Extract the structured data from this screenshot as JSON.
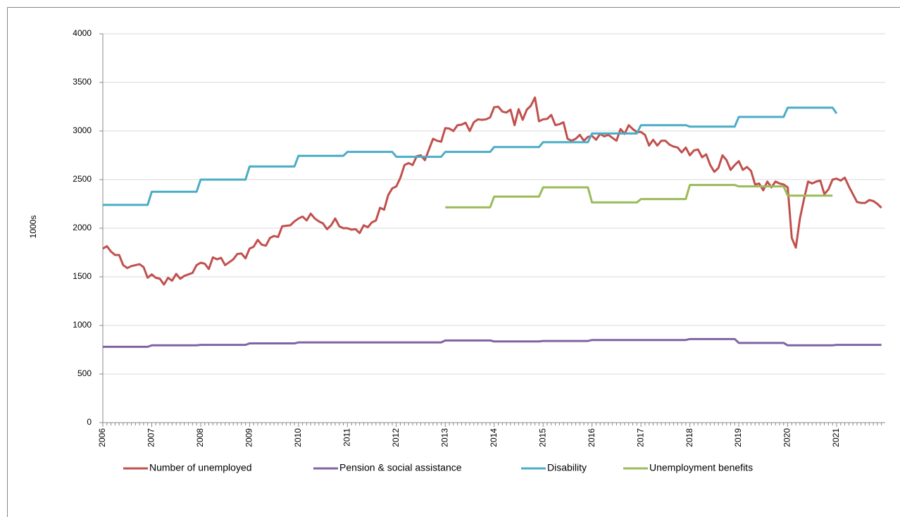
{
  "chart_data": {
    "type": "line",
    "y_label": "1000s",
    "categories": [
      "2006",
      null,
      null,
      null,
      null,
      null,
      null,
      null,
      null,
      null,
      null,
      null,
      "2007",
      null,
      null,
      null,
      null,
      null,
      null,
      null,
      null,
      null,
      null,
      null,
      "2008",
      null,
      null,
      null,
      null,
      null,
      null,
      null,
      null,
      null,
      null,
      null,
      "2009",
      null,
      null,
      null,
      null,
      null,
      null,
      null,
      null,
      null,
      null,
      null,
      "2010",
      null,
      null,
      null,
      null,
      null,
      null,
      null,
      null,
      null,
      null,
      null,
      "2011",
      null,
      null,
      null,
      null,
      null,
      null,
      null,
      null,
      null,
      null,
      null,
      "2012",
      null,
      null,
      null,
      null,
      null,
      null,
      null,
      null,
      null,
      null,
      null,
      "2013",
      null,
      null,
      null,
      null,
      null,
      null,
      null,
      null,
      null,
      null,
      null,
      "2014",
      null,
      null,
      null,
      null,
      null,
      null,
      null,
      null,
      null,
      null,
      null,
      "2015",
      null,
      null,
      null,
      null,
      null,
      null,
      null,
      null,
      null,
      null,
      null,
      "2016",
      null,
      null,
      null,
      null,
      null,
      null,
      null,
      null,
      null,
      null,
      null,
      "2017",
      null,
      null,
      null,
      null,
      null,
      null,
      null,
      null,
      null,
      null,
      null,
      "2018",
      null,
      null,
      null,
      null,
      null,
      null,
      null,
      null,
      null,
      null,
      null,
      "2019",
      null,
      null,
      null,
      null,
      null,
      null,
      null,
      null,
      null,
      null,
      null,
      "2020",
      null,
      null,
      null,
      null,
      null,
      null,
      null,
      null,
      null,
      null,
      null,
      "2021",
      null,
      null,
      null,
      null,
      null,
      null,
      null,
      null,
      null,
      null,
      null
    ],
    "series": [
      {
        "name": "Number of unemployed",
        "color": "#c0504d",
        "values": [
          1790,
          1815,
          1760,
          1725,
          1725,
          1620,
          1590,
          1610,
          1620,
          1630,
          1600,
          1490,
          1525,
          1490,
          1480,
          1420,
          1490,
          1460,
          1530,
          1480,
          1510,
          1525,
          1540,
          1620,
          1645,
          1635,
          1580,
          1700,
          1680,
          1695,
          1620,
          1650,
          1680,
          1735,
          1740,
          1690,
          1790,
          1810,
          1880,
          1830,
          1820,
          1900,
          1920,
          1910,
          2020,
          2025,
          2030,
          2070,
          2100,
          2120,
          2080,
          2150,
          2100,
          2070,
          2050,
          1990,
          2030,
          2100,
          2020,
          2000,
          2000,
          1985,
          1990,
          1950,
          2030,
          2010,
          2060,
          2080,
          2210,
          2190,
          2340,
          2410,
          2430,
          2520,
          2650,
          2670,
          2650,
          2740,
          2750,
          2700,
          2810,
          2920,
          2900,
          2890,
          3030,
          3025,
          3000,
          3060,
          3065,
          3085,
          3000,
          3090,
          3120,
          3115,
          3120,
          3140,
          3245,
          3250,
          3200,
          3190,
          3220,
          3060,
          3225,
          3115,
          3220,
          3260,
          3345,
          3100,
          3120,
          3125,
          3165,
          3060,
          3070,
          3090,
          2920,
          2900,
          2920,
          2960,
          2900,
          2940,
          2950,
          2910,
          2970,
          2945,
          2960,
          2930,
          2900,
          3020,
          2970,
          3060,
          3020,
          2990,
          2990,
          2960,
          2850,
          2910,
          2850,
          2900,
          2900,
          2860,
          2840,
          2830,
          2780,
          2830,
          2750,
          2800,
          2810,
          2730,
          2760,
          2650,
          2580,
          2620,
          2750,
          2700,
          2600,
          2650,
          2690,
          2600,
          2630,
          2590,
          2450,
          2460,
          2390,
          2480,
          2420,
          2480,
          2460,
          2450,
          2420,
          1900,
          1800,
          2100,
          2300,
          2480,
          2460,
          2480,
          2490,
          2350,
          2400,
          2500,
          2510,
          2490,
          2520,
          2430,
          2350,
          2270,
          2260,
          2260,
          2290,
          2280,
          2250,
          2210
        ]
      },
      {
        "name": "Pension & social assistance",
        "color": "#8064a2",
        "values": [
          780,
          780,
          780,
          780,
          780,
          780,
          780,
          780,
          780,
          780,
          780,
          780,
          795,
          795,
          795,
          795,
          795,
          795,
          795,
          795,
          795,
          795,
          795,
          795,
          800,
          800,
          800,
          800,
          800,
          800,
          800,
          800,
          800,
          800,
          800,
          800,
          815,
          815,
          815,
          815,
          815,
          815,
          815,
          815,
          815,
          815,
          815,
          815,
          825,
          825,
          825,
          825,
          825,
          825,
          825,
          825,
          825,
          825,
          825,
          825,
          825,
          825,
          825,
          825,
          825,
          825,
          825,
          825,
          825,
          825,
          825,
          825,
          825,
          825,
          825,
          825,
          825,
          825,
          825,
          825,
          825,
          825,
          825,
          825,
          845,
          845,
          845,
          845,
          845,
          845,
          845,
          845,
          845,
          845,
          845,
          845,
          835,
          835,
          835,
          835,
          835,
          835,
          835,
          835,
          835,
          835,
          835,
          835,
          840,
          840,
          840,
          840,
          840,
          840,
          840,
          840,
          840,
          840,
          840,
          840,
          850,
          850,
          850,
          850,
          850,
          850,
          850,
          850,
          850,
          850,
          850,
          850,
          850,
          850,
          850,
          850,
          850,
          850,
          850,
          850,
          850,
          850,
          850,
          850,
          860,
          860,
          860,
          860,
          860,
          860,
          860,
          860,
          860,
          860,
          860,
          860,
          820,
          820,
          820,
          820,
          820,
          820,
          820,
          820,
          820,
          820,
          820,
          820,
          795,
          795,
          795,
          795,
          795,
          795,
          795,
          795,
          795,
          795,
          795,
          795,
          800,
          800,
          800,
          800,
          800,
          800,
          800,
          800,
          800,
          800,
          800,
          800
        ]
      },
      {
        "name": "Disability",
        "color": "#4bacc6",
        "values": [
          2240,
          2240,
          2240,
          2240,
          2240,
          2240,
          2240,
          2240,
          2240,
          2240,
          2240,
          2240,
          2375,
          2375,
          2375,
          2375,
          2375,
          2375,
          2375,
          2375,
          2375,
          2375,
          2375,
          2375,
          2500,
          2500,
          2500,
          2500,
          2500,
          2500,
          2500,
          2500,
          2500,
          2500,
          2500,
          2500,
          2635,
          2635,
          2635,
          2635,
          2635,
          2635,
          2635,
          2635,
          2635,
          2635,
          2635,
          2635,
          2745,
          2745,
          2745,
          2745,
          2745,
          2745,
          2745,
          2745,
          2745,
          2745,
          2745,
          2745,
          2785,
          2785,
          2785,
          2785,
          2785,
          2785,
          2785,
          2785,
          2785,
          2785,
          2785,
          2785,
          2735,
          2735,
          2735,
          2735,
          2735,
          2735,
          2735,
          2735,
          2735,
          2735,
          2735,
          2735,
          2785,
          2785,
          2785,
          2785,
          2785,
          2785,
          2785,
          2785,
          2785,
          2785,
          2785,
          2785,
          2835,
          2835,
          2835,
          2835,
          2835,
          2835,
          2835,
          2835,
          2835,
          2835,
          2835,
          2835,
          2885,
          2885,
          2885,
          2885,
          2885,
          2885,
          2885,
          2885,
          2885,
          2885,
          2885,
          2885,
          2975,
          2975,
          2975,
          2975,
          2975,
          2975,
          2975,
          2975,
          2975,
          2975,
          2975,
          2975,
          3060,
          3060,
          3060,
          3060,
          3060,
          3060,
          3060,
          3060,
          3060,
          3060,
          3060,
          3060,
          3045,
          3045,
          3045,
          3045,
          3045,
          3045,
          3045,
          3045,
          3045,
          3045,
          3045,
          3045,
          3145,
          3145,
          3145,
          3145,
          3145,
          3145,
          3145,
          3145,
          3145,
          3145,
          3145,
          3145,
          3240,
          3240,
          3240,
          3240,
          3240,
          3240,
          3240,
          3240,
          3240,
          3240,
          3240,
          3240,
          3180,
          null,
          null,
          null,
          null,
          null,
          null,
          null,
          null,
          null,
          null,
          null
        ]
      },
      {
        "name": "Unemployment benefits",
        "color": "#9bbb59",
        "values": [
          null,
          null,
          null,
          null,
          null,
          null,
          null,
          null,
          null,
          null,
          null,
          null,
          null,
          null,
          null,
          null,
          null,
          null,
          null,
          null,
          null,
          null,
          null,
          null,
          null,
          null,
          null,
          null,
          null,
          null,
          null,
          null,
          null,
          null,
          null,
          null,
          null,
          null,
          null,
          null,
          null,
          null,
          null,
          null,
          null,
          null,
          null,
          null,
          null,
          null,
          null,
          null,
          null,
          null,
          null,
          null,
          null,
          null,
          null,
          null,
          null,
          null,
          null,
          null,
          null,
          null,
          null,
          null,
          null,
          null,
          null,
          null,
          null,
          null,
          null,
          null,
          null,
          null,
          null,
          null,
          null,
          null,
          null,
          null,
          2215,
          2215,
          2215,
          2215,
          2215,
          2215,
          2215,
          2215,
          2215,
          2215,
          2215,
          2215,
          2325,
          2325,
          2325,
          2325,
          2325,
          2325,
          2325,
          2325,
          2325,
          2325,
          2325,
          2325,
          2420,
          2420,
          2420,
          2420,
          2420,
          2420,
          2420,
          2420,
          2420,
          2420,
          2420,
          2420,
          2265,
          2265,
          2265,
          2265,
          2265,
          2265,
          2265,
          2265,
          2265,
          2265,
          2265,
          2265,
          2300,
          2300,
          2300,
          2300,
          2300,
          2300,
          2300,
          2300,
          2300,
          2300,
          2300,
          2300,
          2445,
          2445,
          2445,
          2445,
          2445,
          2445,
          2445,
          2445,
          2445,
          2445,
          2445,
          2445,
          2430,
          2430,
          2430,
          2430,
          2430,
          2430,
          2430,
          2430,
          2430,
          2430,
          2430,
          2430,
          2335,
          2335,
          2335,
          2335,
          2335,
          2335,
          2335,
          2335,
          2335,
          2335,
          2335,
          2335,
          null,
          null,
          null,
          null,
          null,
          null,
          null,
          null,
          null,
          null,
          null,
          null
        ]
      }
    ],
    "ylim": [
      0,
      4000
    ],
    "yticks": [
      0,
      500,
      1000,
      1500,
      2000,
      2500,
      3000,
      3500,
      4000
    ],
    "grid": true,
    "legend": "bottom"
  }
}
